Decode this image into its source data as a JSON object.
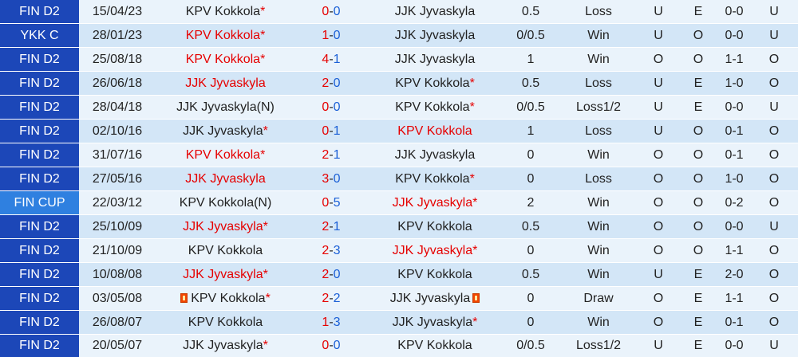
{
  "colors": {
    "league_bg": "#1c47b8",
    "cup_bg": "#2f80e0",
    "row_light": "#eaf3fb",
    "row_dark": "#d3e6f7",
    "red": "#e60000",
    "green": "#0a9a23",
    "blue": "#1a5fd6"
  },
  "matches": [
    {
      "league": "FIN D2",
      "date": "15/04/23",
      "home": "KPV Kokkola",
      "home_star": true,
      "home_red": false,
      "home_flag": false,
      "hs": "0",
      "as": "0",
      "away": "JJK Jyvaskyla",
      "away_star": false,
      "away_red": false,
      "away_flag": false,
      "hcp": "0.5",
      "hcp_blue": false,
      "result": "Loss",
      "result_color": "green",
      "hd": "U",
      "hd_color": "green",
      "oe": "E",
      "oe_color": "red",
      "ht": "0-0",
      "ou": "U",
      "ou_color": "green"
    },
    {
      "league": "YKK C",
      "date": "28/01/23",
      "home": "KPV Kokkola",
      "home_star": true,
      "home_red": true,
      "home_flag": false,
      "hs": "1",
      "as": "0",
      "away": "JJK Jyvaskyla",
      "away_star": false,
      "away_red": false,
      "away_flag": false,
      "hcp": "0/0.5",
      "hcp_blue": false,
      "result": "Win",
      "result_color": "red",
      "hd": "U",
      "hd_color": "green",
      "oe": "O",
      "oe_color": "green",
      "ht": "0-0",
      "ou": "U",
      "ou_color": "green"
    },
    {
      "league": "FIN D2",
      "date": "25/08/18",
      "home": "KPV Kokkola",
      "home_star": true,
      "home_red": true,
      "home_flag": false,
      "hs": "4",
      "as": "1",
      "away": "JJK Jyvaskyla",
      "away_star": false,
      "away_red": false,
      "away_flag": false,
      "hcp": "1",
      "hcp_blue": true,
      "result": "Win",
      "result_color": "red",
      "hd": "O",
      "hd_color": "red",
      "oe": "O",
      "oe_color": "green",
      "ht": "1-1",
      "ou": "O",
      "ou_color": "red"
    },
    {
      "league": "FIN D2",
      "date": "26/06/18",
      "home": "JJK Jyvaskyla",
      "home_star": false,
      "home_red": true,
      "home_flag": false,
      "hs": "2",
      "as": "0",
      "away": "KPV Kokkola",
      "away_star": true,
      "away_red": false,
      "away_flag": false,
      "hcp": "0.5",
      "hcp_blue": true,
      "result": "Loss",
      "result_color": "green",
      "hd": "U",
      "hd_color": "green",
      "oe": "E",
      "oe_color": "red",
      "ht": "1-0",
      "ou": "O",
      "ou_color": "red"
    },
    {
      "league": "FIN D2",
      "date": "28/04/18",
      "home": "JJK Jyvaskyla(N)",
      "home_star": false,
      "home_red": false,
      "home_flag": false,
      "hs": "0",
      "as": "0",
      "away": "KPV Kokkola",
      "away_star": true,
      "away_red": false,
      "away_flag": false,
      "hcp": "0/0.5",
      "hcp_blue": false,
      "result": "Loss1/2",
      "result_color": "green",
      "hd": "U",
      "hd_color": "green",
      "oe": "E",
      "oe_color": "red",
      "ht": "0-0",
      "ou": "U",
      "ou_color": "green"
    },
    {
      "league": "FIN D2",
      "date": "02/10/16",
      "home": "JJK Jyvaskyla",
      "home_star": true,
      "home_red": false,
      "home_flag": false,
      "hs": "0",
      "as": "1",
      "away": "KPV Kokkola",
      "away_star": false,
      "away_red": true,
      "away_flag": false,
      "hcp": "1",
      "hcp_blue": false,
      "result": "Loss",
      "result_color": "green",
      "hd": "U",
      "hd_color": "green",
      "oe": "O",
      "oe_color": "green",
      "ht": "0-1",
      "ou": "O",
      "ou_color": "red"
    },
    {
      "league": "FIN D2",
      "date": "31/07/16",
      "home": "KPV Kokkola",
      "home_star": true,
      "home_red": true,
      "home_flag": false,
      "hs": "2",
      "as": "1",
      "away": "JJK Jyvaskyla",
      "away_star": false,
      "away_red": false,
      "away_flag": false,
      "hcp": "0",
      "hcp_blue": false,
      "result": "Win",
      "result_color": "red",
      "hd": "O",
      "hd_color": "red",
      "oe": "O",
      "oe_color": "green",
      "ht": "0-1",
      "ou": "O",
      "ou_color": "red"
    },
    {
      "league": "FIN D2",
      "date": "27/05/16",
      "home": "JJK Jyvaskyla",
      "home_star": false,
      "home_red": true,
      "home_flag": false,
      "hs": "3",
      "as": "0",
      "away": "KPV Kokkola",
      "away_star": true,
      "away_red": false,
      "away_flag": false,
      "hcp": "0",
      "hcp_blue": false,
      "result": "Loss",
      "result_color": "green",
      "hd": "O",
      "hd_color": "red",
      "oe": "O",
      "oe_color": "green",
      "ht": "1-0",
      "ou": "O",
      "ou_color": "red"
    },
    {
      "league": "FIN CUP",
      "date": "22/03/12",
      "home": "KPV Kokkola(N)",
      "home_star": false,
      "home_red": false,
      "home_flag": false,
      "hs": "0",
      "as": "5",
      "away": "JJK Jyvaskyla",
      "away_star": true,
      "away_red": true,
      "away_flag": false,
      "hcp": "2",
      "hcp_blue": false,
      "result": "Win",
      "result_color": "red",
      "hd": "O",
      "hd_color": "red",
      "oe": "O",
      "oe_color": "green",
      "ht": "0-2",
      "ou": "O",
      "ou_color": "red",
      "cup": true
    },
    {
      "league": "FIN D2",
      "date": "25/10/09",
      "home": "JJK Jyvaskyla",
      "home_star": true,
      "home_red": true,
      "home_flag": false,
      "hs": "2",
      "as": "1",
      "away": "KPV Kokkola",
      "away_star": false,
      "away_red": false,
      "away_flag": false,
      "hcp": "0.5",
      "hcp_blue": false,
      "result": "Win",
      "result_color": "red",
      "hd": "O",
      "hd_color": "red",
      "oe": "O",
      "oe_color": "green",
      "ht": "0-0",
      "ou": "U",
      "ou_color": "green"
    },
    {
      "league": "FIN D2",
      "date": "21/10/09",
      "home": "KPV Kokkola",
      "home_star": false,
      "home_red": false,
      "home_flag": false,
      "hs": "2",
      "as": "3",
      "away": "JJK Jyvaskyla",
      "away_star": true,
      "away_red": true,
      "away_flag": false,
      "hcp": "0",
      "hcp_blue": false,
      "result": "Win",
      "result_color": "red",
      "hd": "O",
      "hd_color": "red",
      "oe": "O",
      "oe_color": "green",
      "ht": "1-1",
      "ou": "O",
      "ou_color": "red"
    },
    {
      "league": "FIN D2",
      "date": "10/08/08",
      "home": "JJK Jyvaskyla",
      "home_star": true,
      "home_red": true,
      "home_flag": false,
      "hs": "2",
      "as": "0",
      "away": "KPV Kokkola",
      "away_star": false,
      "away_red": false,
      "away_flag": false,
      "hcp": "0.5",
      "hcp_blue": false,
      "result": "Win",
      "result_color": "red",
      "hd": "U",
      "hd_color": "green",
      "oe": "E",
      "oe_color": "red",
      "ht": "2-0",
      "ou": "O",
      "ou_color": "red"
    },
    {
      "league": "FIN D2",
      "date": "03/05/08",
      "home": "KPV Kokkola",
      "home_star": true,
      "home_red": false,
      "home_flag": true,
      "hs": "2",
      "as": "2",
      "away": "JJK Jyvaskyla",
      "away_star": false,
      "away_red": false,
      "away_flag": true,
      "hcp": "0",
      "hcp_blue": false,
      "result": "Draw",
      "result_color": "blue",
      "hd": "O",
      "hd_color": "red",
      "oe": "E",
      "oe_color": "red",
      "ht": "1-1",
      "ou": "O",
      "ou_color": "red"
    },
    {
      "league": "FIN D2",
      "date": "26/08/07",
      "home": "KPV Kokkola",
      "home_star": false,
      "home_red": false,
      "home_flag": false,
      "hs": "1",
      "as": "3",
      "away": "JJK Jyvaskyla",
      "away_star": true,
      "away_red": false,
      "away_flag": false,
      "hcp": "0",
      "hcp_blue": false,
      "result": "Win",
      "result_color": "red",
      "hd": "O",
      "hd_color": "red",
      "oe": "E",
      "oe_color": "red",
      "ht": "0-1",
      "ou": "O",
      "ou_color": "red"
    },
    {
      "league": "FIN D2",
      "date": "20/05/07",
      "home": "JJK Jyvaskyla",
      "home_star": true,
      "home_red": false,
      "home_flag": false,
      "hs": "0",
      "as": "0",
      "away": "KPV Kokkola",
      "away_star": false,
      "away_red": false,
      "away_flag": false,
      "hcp": "0/0.5",
      "hcp_blue": false,
      "result": "Loss1/2",
      "result_color": "green",
      "hd": "U",
      "hd_color": "green",
      "oe": "E",
      "oe_color": "red",
      "ht": "0-0",
      "ou": "U",
      "ou_color": "green"
    }
  ]
}
